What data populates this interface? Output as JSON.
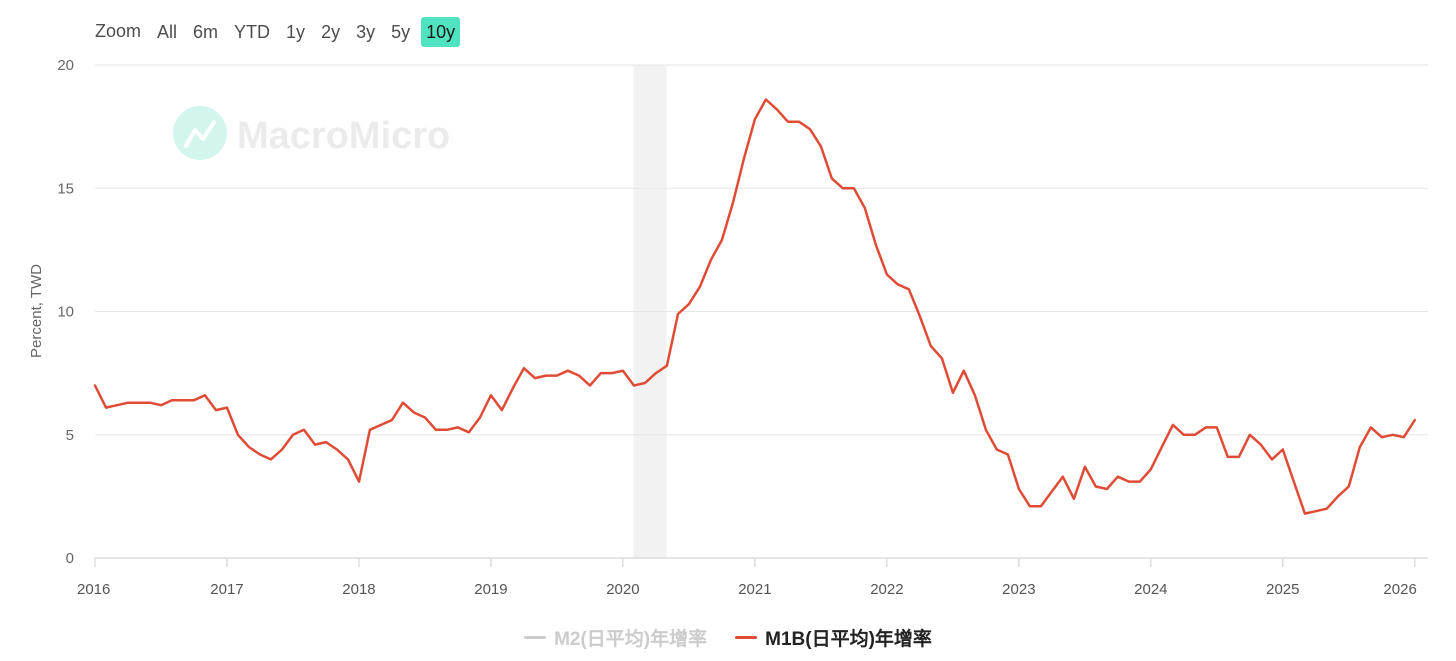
{
  "zoom": {
    "label": "Zoom",
    "buttons": [
      "All",
      "6m",
      "YTD",
      "1y",
      "2y",
      "3y",
      "5y",
      "10y"
    ],
    "active": "10y"
  },
  "watermark": {
    "text": "MacroMicro",
    "icon": "macromicro-logo-icon"
  },
  "chart_data": {
    "type": "line",
    "ylabel": "Percent, TWD",
    "xlabel": "",
    "ylim": [
      0,
      20
    ],
    "yticks": [
      0,
      5,
      10,
      15,
      20
    ],
    "xlim": [
      2016.0,
      2026.1
    ],
    "xticks": [
      "2016",
      "2017",
      "2018",
      "2019",
      "2020",
      "2021",
      "2022",
      "2023",
      "2024",
      "2025",
      "2026"
    ],
    "grid": true,
    "legend": "bottom-center",
    "shaded_band": {
      "from": 2020.08,
      "to": 2020.33
    },
    "series": [
      {
        "name": "M2(日平均)年增率",
        "color": "#cccccc",
        "visible": false,
        "values": []
      },
      {
        "name": "M1B(日平均)年增率",
        "color": "#e04b35",
        "visible": true,
        "x": [
          2016.0,
          2016.083,
          2016.167,
          2016.25,
          2016.333,
          2016.417,
          2016.5,
          2016.583,
          2016.667,
          2016.75,
          2016.833,
          2016.917,
          2017.0,
          2017.083,
          2017.167,
          2017.25,
          2017.333,
          2017.417,
          2017.5,
          2017.583,
          2017.667,
          2017.75,
          2017.833,
          2017.917,
          2018.0,
          2018.083,
          2018.167,
          2018.25,
          2018.333,
          2018.417,
          2018.5,
          2018.583,
          2018.667,
          2018.75,
          2018.833,
          2018.917,
          2019.0,
          2019.083,
          2019.167,
          2019.25,
          2019.333,
          2019.417,
          2019.5,
          2019.583,
          2019.667,
          2019.75,
          2019.833,
          2019.917,
          2020.0,
          2020.083,
          2020.167,
          2020.25,
          2020.333,
          2020.417,
          2020.5,
          2020.583,
          2020.667,
          2020.75,
          2020.833,
          2020.917,
          2021.0,
          2021.083,
          2021.167,
          2021.25,
          2021.333,
          2021.417,
          2021.5,
          2021.583,
          2021.667,
          2021.75,
          2021.833,
          2021.917,
          2022.0,
          2022.083,
          2022.167,
          2022.25,
          2022.333,
          2022.417,
          2022.5,
          2022.583,
          2022.667,
          2022.75,
          2022.833,
          2022.917,
          2023.0,
          2023.083,
          2023.167,
          2023.25,
          2023.333,
          2023.417,
          2023.5,
          2023.583,
          2023.667,
          2023.75,
          2023.833,
          2023.917,
          2024.0,
          2024.083,
          2024.167,
          2024.25,
          2024.333,
          2024.417,
          2024.5,
          2024.583,
          2024.667,
          2024.75,
          2024.833,
          2024.917,
          2025.0,
          2025.083,
          2025.167,
          2025.25,
          2025.333,
          2025.417,
          2025.5,
          2025.583,
          2025.667,
          2025.75,
          2025.833,
          2025.917,
          2026.0
        ],
        "values": [
          7.0,
          6.1,
          6.2,
          6.3,
          6.3,
          6.3,
          6.2,
          6.4,
          6.4,
          6.4,
          6.6,
          6.0,
          6.1,
          5.0,
          4.5,
          4.2,
          4.0,
          4.4,
          5.0,
          5.2,
          4.6,
          4.7,
          4.4,
          4.0,
          3.1,
          5.2,
          5.4,
          5.6,
          6.3,
          5.9,
          5.7,
          5.2,
          5.2,
          5.3,
          5.1,
          5.7,
          6.6,
          6.0,
          6.9,
          7.7,
          7.3,
          7.4,
          7.4,
          7.6,
          7.4,
          7.0,
          7.5,
          7.5,
          7.6,
          7.0,
          7.1,
          7.5,
          7.8,
          9.9,
          10.3,
          11.0,
          12.1,
          12.9,
          14.4,
          16.2,
          17.8,
          18.6,
          18.2,
          17.7,
          17.7,
          17.4,
          16.7,
          15.4,
          15.0,
          15.0,
          14.2,
          12.7,
          11.5,
          11.1,
          10.9,
          9.8,
          8.6,
          8.1,
          6.7,
          7.6,
          6.6,
          5.2,
          4.4,
          4.2,
          2.8,
          2.1,
          2.1,
          2.7,
          3.3,
          2.4,
          3.7,
          2.9,
          2.8,
          3.3,
          3.1,
          3.1,
          3.6,
          4.5,
          5.4,
          5.0,
          5.0,
          5.3,
          5.3,
          4.1,
          4.1,
          5.0,
          4.6,
          4.0,
          4.4,
          3.1,
          1.8,
          1.9,
          2.0,
          2.5,
          2.9,
          4.5,
          5.3,
          4.9,
          5.0,
          4.9,
          5.6
        ]
      }
    ]
  }
}
